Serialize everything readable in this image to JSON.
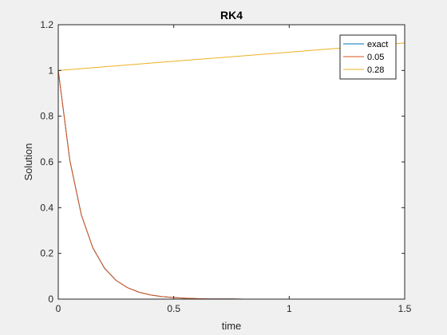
{
  "chart_data": {
    "type": "line",
    "title": "RK4",
    "xlabel": "time",
    "ylabel": "Solution",
    "xlim": [
      0,
      1.5
    ],
    "ylim": [
      0,
      1.2
    ],
    "xticks": [
      0,
      0.5,
      1,
      1.5
    ],
    "xtick_labels": [
      "0",
      "0.5",
      "1",
      "1.5"
    ],
    "yticks": [
      0,
      0.2,
      0.4,
      0.6,
      0.8,
      1,
      1.2
    ],
    "ytick_labels": [
      "0",
      "0.2",
      "0.4",
      "0.6",
      "0.8",
      "1",
      "1.2"
    ],
    "grid": false,
    "legend_position": "top-right",
    "series": [
      {
        "name": "exact",
        "color": "#0072BD",
        "x": [
          0,
          0.05,
          0.1,
          0.15,
          0.2,
          0.25,
          0.3,
          0.35,
          0.4,
          0.45,
          0.5,
          0.55,
          0.6,
          0.65,
          0.7,
          0.75,
          0.8,
          0.85,
          0.9,
          0.95,
          1.0,
          1.05,
          1.1,
          1.15,
          1.2,
          1.25,
          1.3,
          1.35,
          1.4,
          1.45,
          1.5
        ],
        "y": [
          1.0,
          0.607,
          0.368,
          0.223,
          0.135,
          0.082,
          0.05,
          0.03,
          0.018,
          0.011,
          0.007,
          0.004,
          0.002,
          0.001,
          0.001,
          0.001,
          0.0,
          0.0,
          0.0,
          0.0,
          0.0,
          0.0,
          0.0,
          0.0,
          0.0,
          0.0,
          0.0,
          0.0,
          0.0,
          0.0,
          0.0
        ]
      },
      {
        "name": "0.05",
        "color": "#D95319",
        "x": [
          0,
          0.05,
          0.1,
          0.15,
          0.2,
          0.25,
          0.3,
          0.35,
          0.4,
          0.45,
          0.5,
          0.55,
          0.6,
          0.65,
          0.7,
          0.75,
          0.8,
          0.85,
          0.9,
          0.95,
          1.0,
          1.05,
          1.1,
          1.15,
          1.2,
          1.25,
          1.3,
          1.35,
          1.4,
          1.45,
          1.5
        ],
        "y": [
          1.0,
          0.607,
          0.368,
          0.224,
          0.136,
          0.082,
          0.05,
          0.03,
          0.018,
          0.011,
          0.007,
          0.004,
          0.002,
          0.001,
          0.001,
          0.001,
          0.0,
          0.0,
          0.0,
          0.0,
          0.0,
          0.0,
          0.0,
          0.0,
          0.0,
          0.0,
          0.0,
          0.0,
          0.0,
          0.0,
          0.0
        ]
      },
      {
        "name": "0.28",
        "color": "#EDB120",
        "x": [
          0,
          1.5
        ],
        "y": [
          1.0,
          1.12
        ]
      }
    ]
  }
}
